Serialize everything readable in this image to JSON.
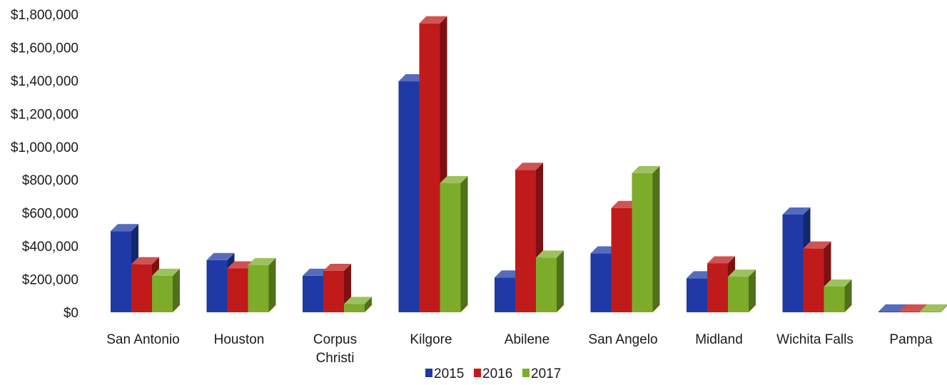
{
  "chart_data": {
    "type": "bar",
    "style": "3d-clustered-column",
    "categories": [
      "San Antonio",
      "Houston",
      "Corpus Christi",
      "Kilgore",
      "Abilene",
      "San Angelo",
      "Midland",
      "Wichita Falls",
      "Pampa"
    ],
    "category_lines": [
      [
        "San Antonio"
      ],
      [
        "Houston"
      ],
      [
        "Corpus",
        "Christi"
      ],
      [
        "Kilgore"
      ],
      [
        "Abilene"
      ],
      [
        "San Angelo"
      ],
      [
        "Midland"
      ],
      [
        "Wichita Falls"
      ],
      [
        "Pampa"
      ]
    ],
    "series": [
      {
        "name": "2015",
        "color": "#1f3aa6",
        "values": [
          490000,
          315000,
          220000,
          1395000,
          210000,
          355000,
          205000,
          590000,
          5000
        ]
      },
      {
        "name": "2016",
        "color": "#c01a1a",
        "values": [
          290000,
          265000,
          250000,
          1745000,
          860000,
          630000,
          295000,
          385000,
          5000
        ]
      },
      {
        "name": "2017",
        "color": "#7cac2a",
        "values": [
          220000,
          285000,
          50000,
          780000,
          330000,
          840000,
          215000,
          155000,
          5000
        ]
      }
    ],
    "yticks": [
      "$0",
      "$200,000",
      "$400,000",
      "$600,000",
      "$800,000",
      "$1,000,000",
      "$1,200,000",
      "$1,400,000",
      "$1,600,000",
      "$1,800,000"
    ],
    "ylim": [
      0,
      1800000
    ],
    "grid": false,
    "legend_position": "bottom"
  }
}
